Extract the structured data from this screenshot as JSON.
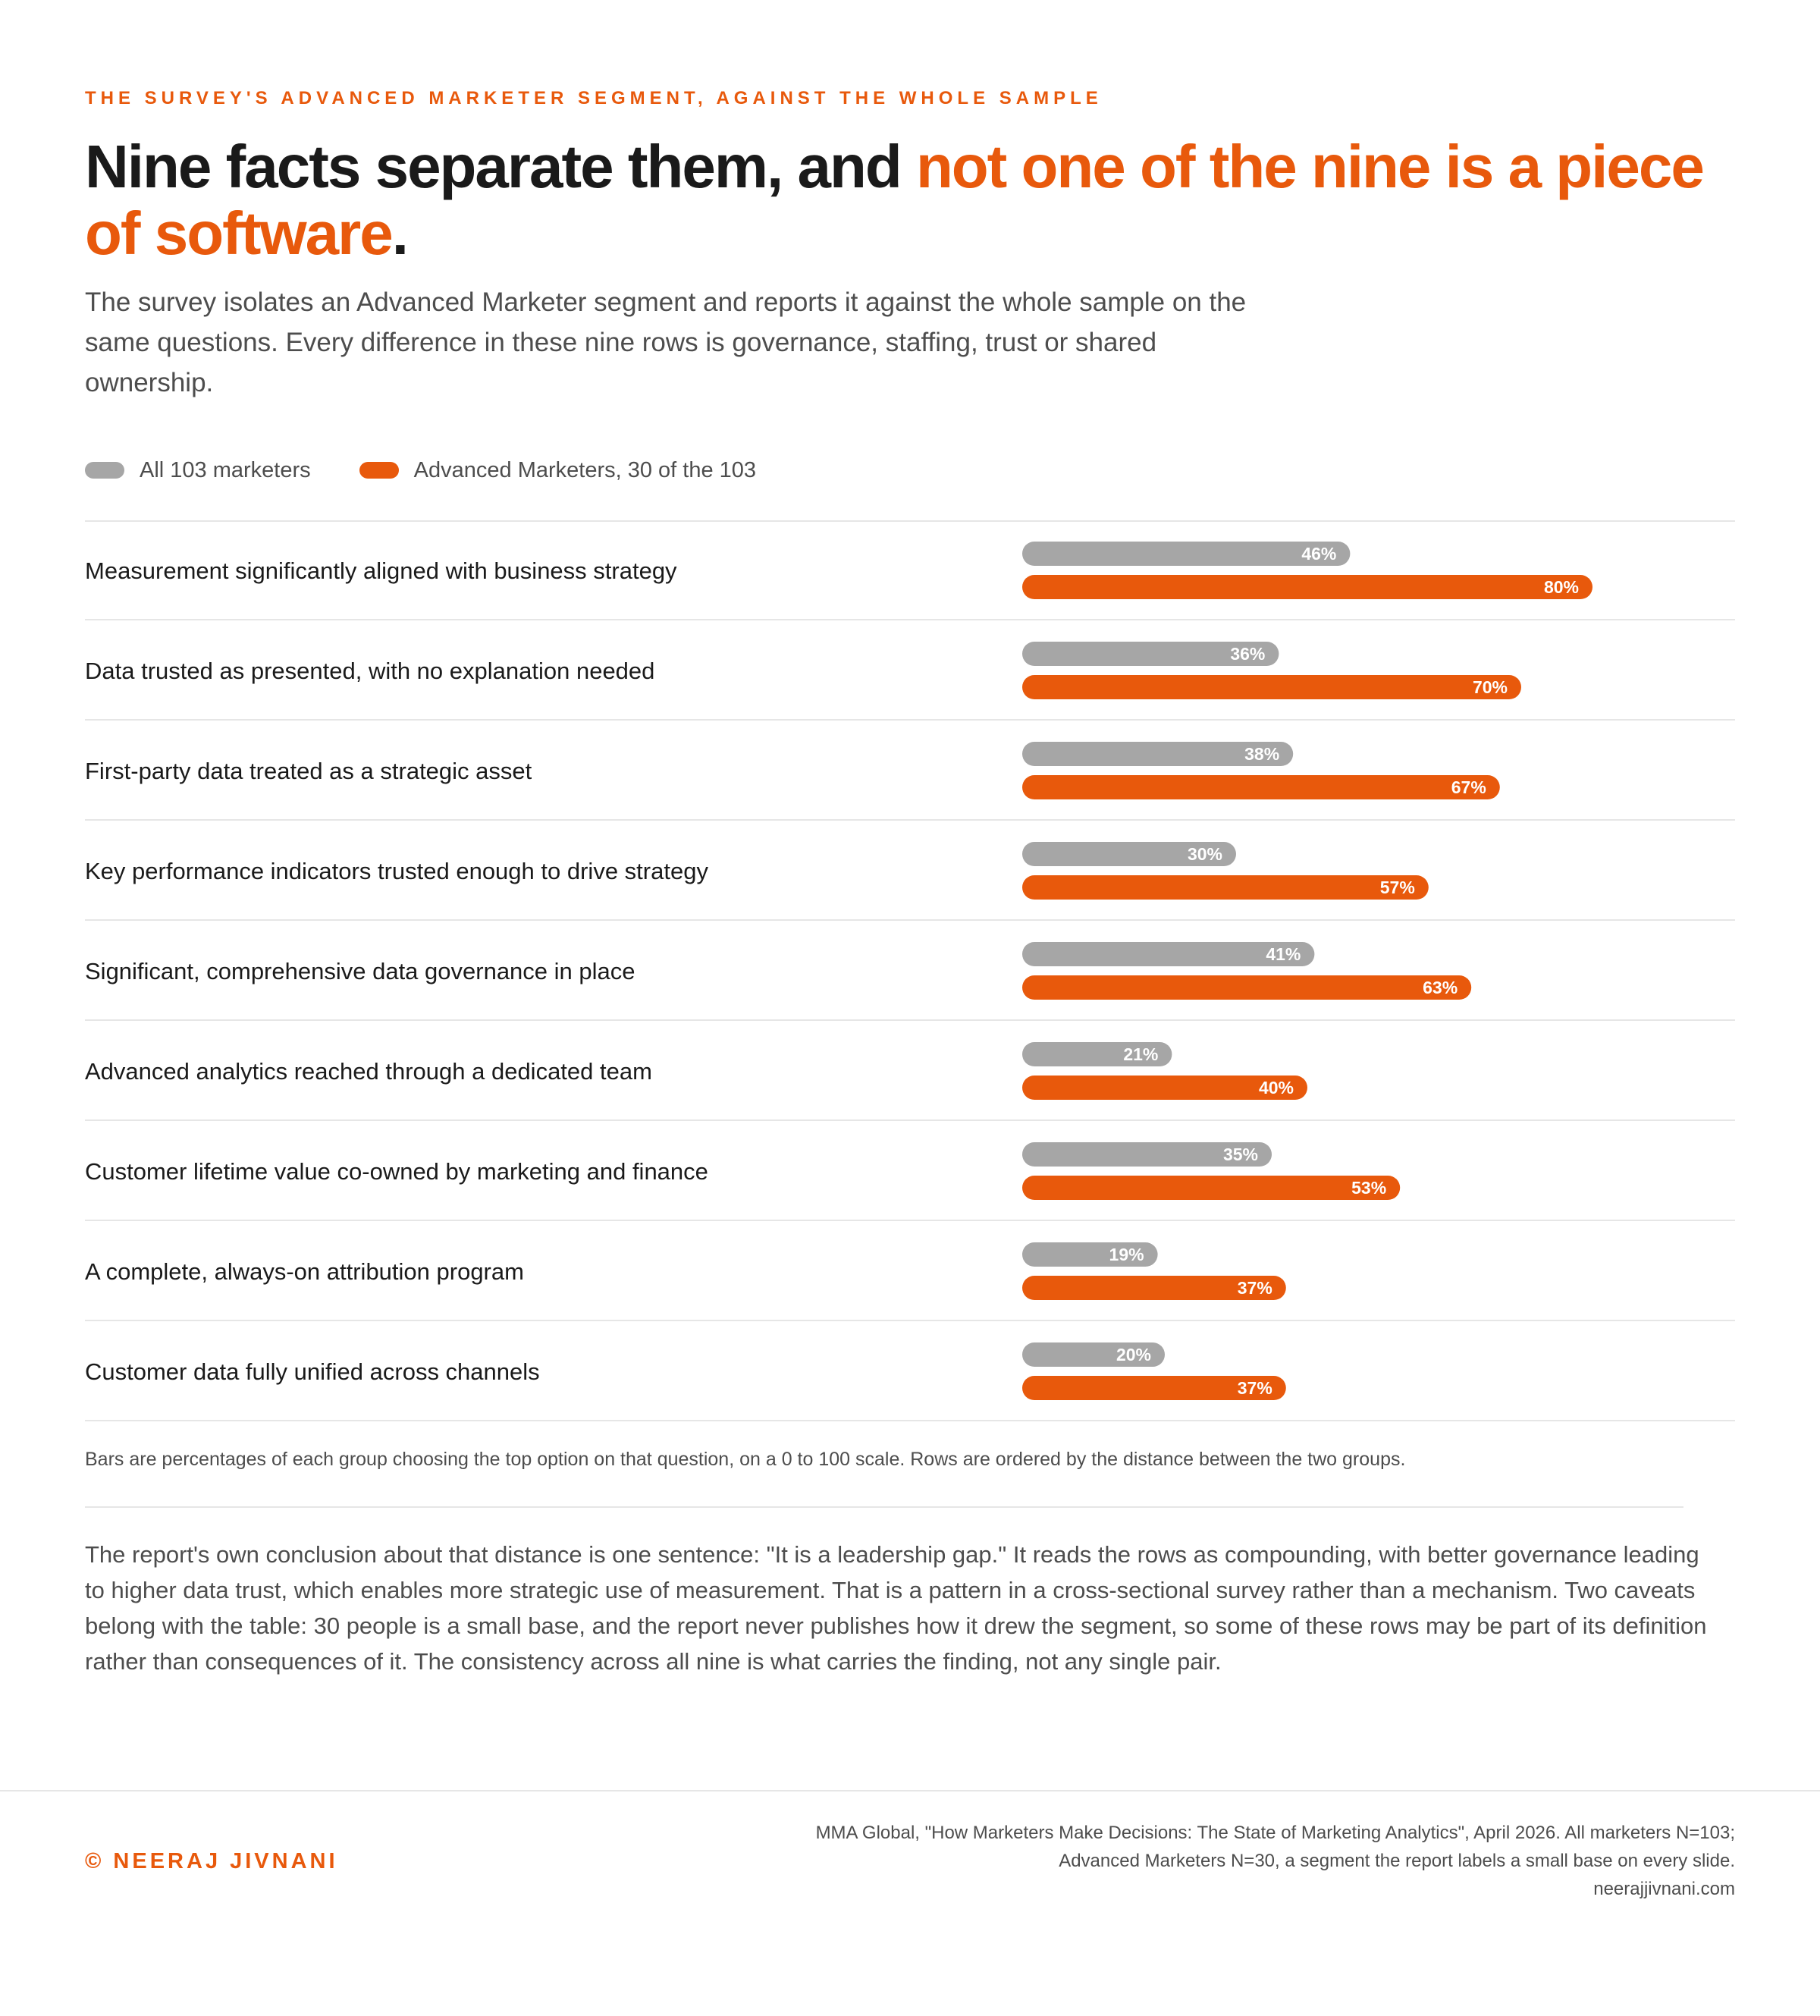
{
  "header": {
    "kicker": "THE SURVEY'S ADVANCED MARKETER SEGMENT, AGAINST THE WHOLE SAMPLE",
    "headline_plain": "Nine facts separate them, and ",
    "headline_accent": "not one of the nine is a piece of software",
    "headline_end": ".",
    "subtitle": "The survey isolates an Advanced Marketer segment and reports it against the whole sample on the same questions. Every difference in these nine rows is governance, staffing, trust or shared ownership."
  },
  "legend": [
    {
      "label": "All 103 marketers",
      "color": "#a6a6a6"
    },
    {
      "label": "Advanced Marketers, 30 of the 103",
      "color": "#e8590c"
    }
  ],
  "chart_data": {
    "type": "bar",
    "orientation": "horizontal",
    "scale": [
      0,
      100
    ],
    "value_suffix": "%",
    "categories": [
      "Measurement significantly aligned with business strategy",
      "Data trusted as presented, with no explanation needed",
      "First-party data treated as a strategic asset",
      "Key performance indicators trusted enough to drive strategy",
      "Significant, comprehensive data governance in place",
      "Advanced analytics reached through a dedicated team",
      "Customer lifetime value co-owned by marketing and finance",
      "A complete, always-on attribution program",
      "Customer data fully unified across channels"
    ],
    "series": [
      {
        "name": "All 103 marketers",
        "color": "#a6a6a6",
        "values": [
          46,
          36,
          38,
          30,
          41,
          21,
          35,
          19,
          20
        ]
      },
      {
        "name": "Advanced Marketers, 30 of the 103",
        "color": "#e8590c",
        "values": [
          80,
          70,
          67,
          57,
          63,
          40,
          53,
          37,
          37
        ]
      }
    ],
    "grid": false,
    "legend_position": "top-left"
  },
  "footnote": "Bars are percentages of each group choosing the top option on that question, on a 0 to 100 scale. Rows are ordered by the distance between the two groups.",
  "conclusion": "The report's own conclusion about that distance is one sentence: \"It is a leadership gap.\" It reads the rows as compounding, with better governance leading to higher data trust, which enables more strategic use of measurement. That is a pattern in a cross-sectional survey rather than a mechanism. Two caveats belong with the table: 30 people is a small base, and the report never publishes how it drew the segment, so some of these rows may be part of its definition rather than consequences of it. The consistency across all nine is what carries the finding, not any single pair.",
  "footer": {
    "copyright": "© NEERAJ JIVNANI",
    "source_lines": [
      "MMA Global, \"How Marketers Make Decisions: The State of Marketing Analytics\", April 2026. All marketers N=103;",
      "Advanced Marketers N=30, a segment the report labels a small base on every slide.",
      "neerajjivnani.com"
    ]
  }
}
